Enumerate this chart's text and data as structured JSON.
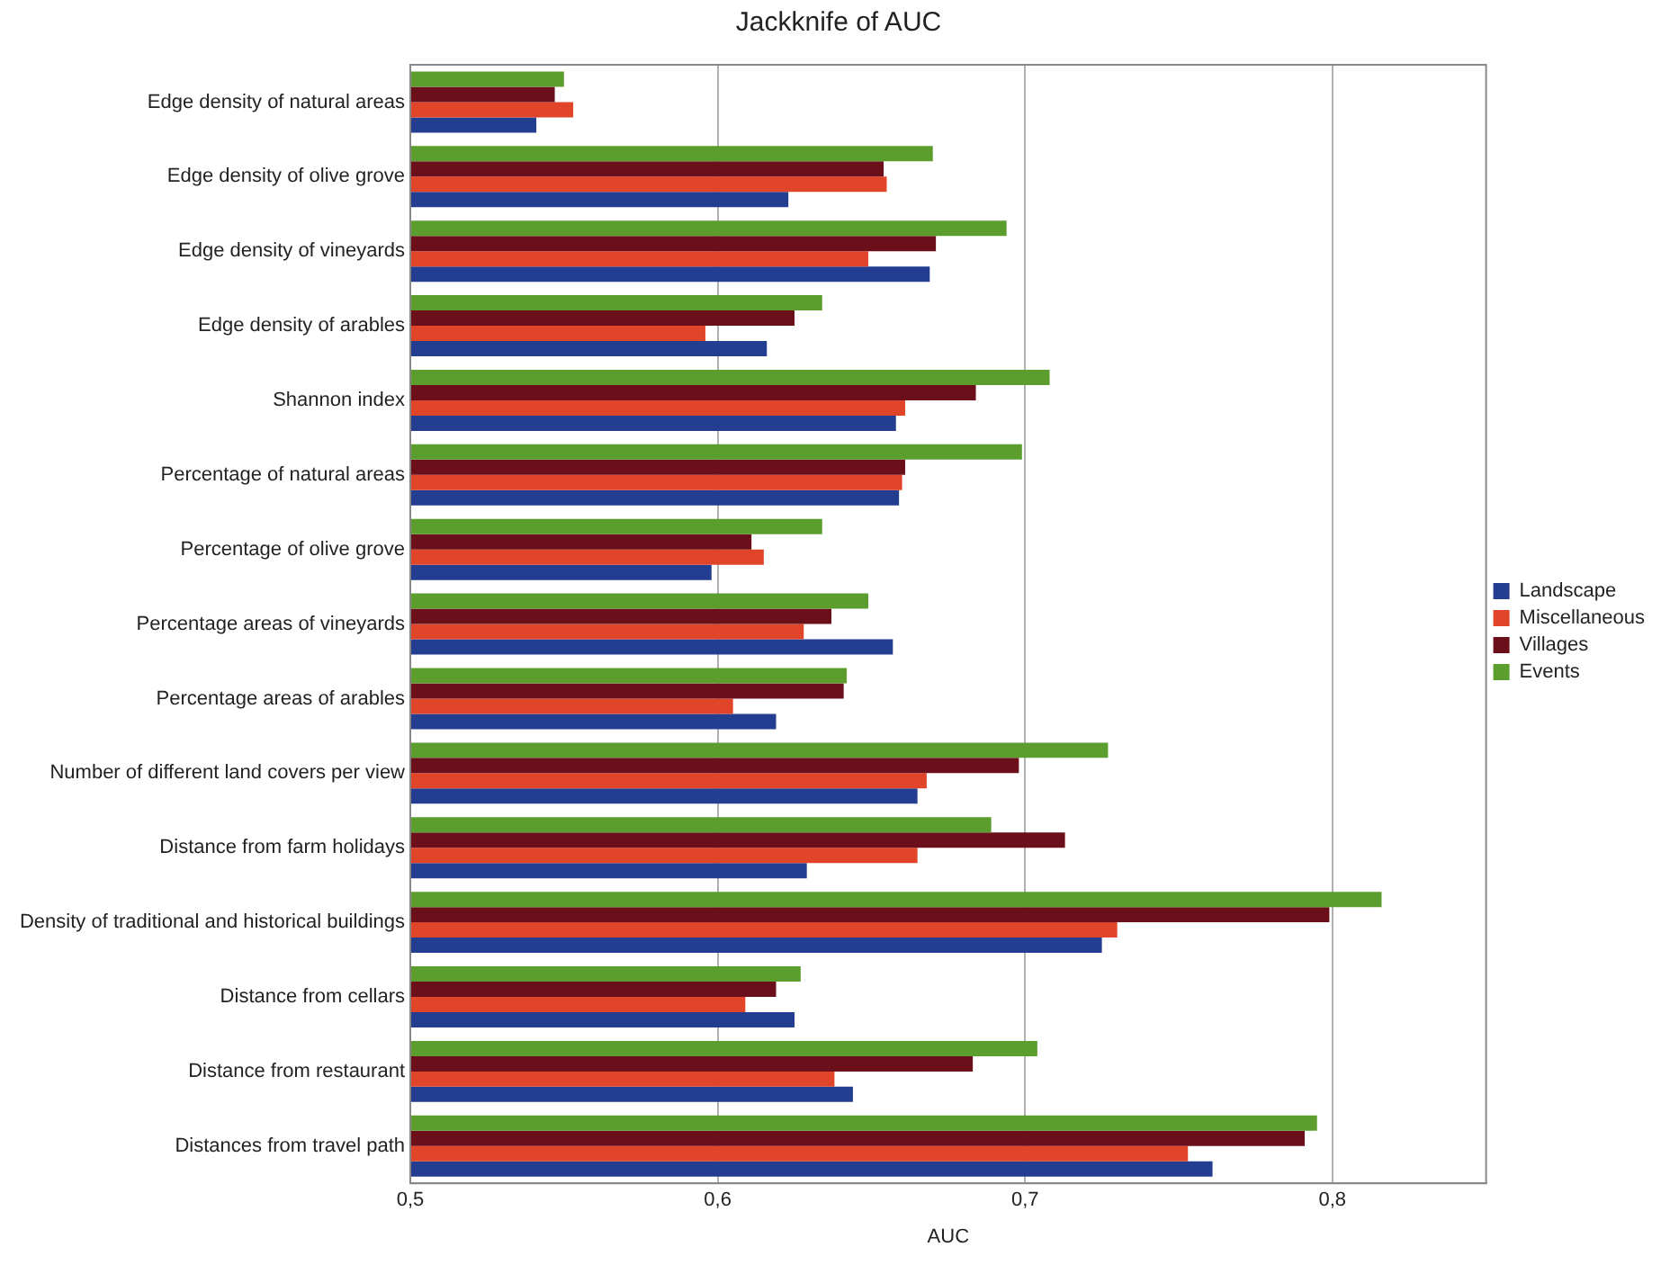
{
  "chart_data": {
    "type": "bar",
    "orientation": "horizontal",
    "title": "Jackknife of AUC",
    "xlabel": "AUC",
    "categories": [
      "Edge density of natural areas",
      "Edge density of olive grove",
      "Edge density of vineyards",
      "Edge density of arables",
      "Shannon index",
      "Percentage of natural areas",
      "Percentage of olive grove",
      "Percentage areas of vineyards",
      "Percentage areas of arables",
      "Number of different land covers per view",
      "Distance from farm holidays",
      "Density of traditional and historical buildings",
      "Distance from cellars",
      "Distance from restaurant",
      "Distances from travel path"
    ],
    "series": [
      {
        "name": "Landscape",
        "color": "#233d91",
        "values": [
          0.541,
          0.623,
          0.669,
          0.616,
          0.658,
          0.659,
          0.598,
          0.657,
          0.619,
          0.665,
          0.629,
          0.725,
          0.625,
          0.644,
          0.761
        ]
      },
      {
        "name": "Miscellaneous",
        "color": "#e0452a",
        "values": [
          0.553,
          0.655,
          0.649,
          0.596,
          0.661,
          0.66,
          0.615,
          0.628,
          0.605,
          0.668,
          0.665,
          0.73,
          0.609,
          0.638,
          0.753
        ]
      },
      {
        "name": "Villages",
        "color": "#6b0f1a",
        "values": [
          0.547,
          0.654,
          0.671,
          0.625,
          0.684,
          0.661,
          0.611,
          0.637,
          0.641,
          0.698,
          0.713,
          0.799,
          0.619,
          0.683,
          0.791
        ]
      },
      {
        "name": "Events",
        "color": "#5c9e2e",
        "values": [
          0.55,
          0.67,
          0.694,
          0.634,
          0.708,
          0.699,
          0.634,
          0.649,
          0.642,
          0.727,
          0.689,
          0.816,
          0.627,
          0.704,
          0.795
        ]
      }
    ],
    "xlim": [
      0.5,
      0.85
    ],
    "xticks": [
      {
        "value": 0.5,
        "label": "0,5"
      },
      {
        "value": 0.6,
        "label": "0,6"
      },
      {
        "value": 0.7,
        "label": "0,7"
      },
      {
        "value": 0.8,
        "label": "0,8"
      }
    ],
    "grid": "x",
    "legend": "right"
  }
}
